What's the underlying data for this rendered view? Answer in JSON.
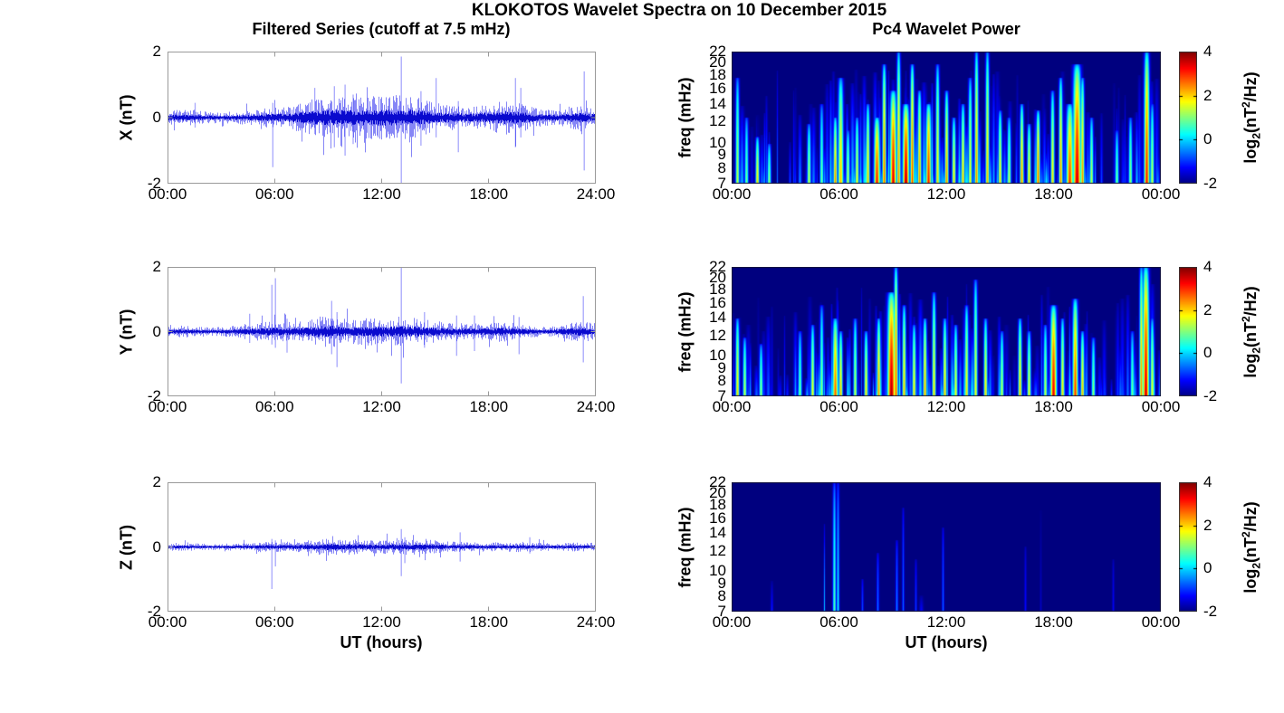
{
  "figure_title": "KLOKOTOS Wavelet Spectra on 10 December 2015",
  "colorbar": {
    "clim": [
      -2,
      4
    ],
    "ticks": [
      4,
      2,
      0,
      -2
    ],
    "label": {
      "pre": "log",
      "sub": "2",
      "mid": "(nT",
      "sup": "2",
      "post": "/Hz)"
    }
  },
  "chart_data": [
    {
      "id": "x-series",
      "type": "line",
      "title": "Filtered Series (cutoff at 7.5 mHz)",
      "ylabel": "X (nT)",
      "xlabel": "",
      "ylim": [
        -2,
        2
      ],
      "yticks": [
        2,
        0,
        -2
      ],
      "x_range_hours": [
        0,
        24
      ],
      "xticks": [
        "00:00",
        "06:00",
        "12:00",
        "18:00",
        "24:00"
      ],
      "line_color": "#0a0ace",
      "envelope_hourly_nT": [
        0.12,
        0.12,
        0.09,
        0.08,
        0.1,
        0.13,
        0.15,
        0.18,
        0.26,
        0.3,
        0.3,
        0.3,
        0.32,
        0.33,
        0.3,
        0.22,
        0.18,
        0.16,
        0.2,
        0.26,
        0.2,
        0.12,
        0.12,
        0.2,
        0.14
      ],
      "spikes": [
        {
          "t": 1.55,
          "lo": -0.3,
          "hi": 0.45
        },
        {
          "t": 5.9,
          "lo": -1.5,
          "hi": 0.45
        },
        {
          "t": 8.25,
          "lo": -0.5,
          "hi": 0.9
        },
        {
          "t": 9.35,
          "lo": -0.9,
          "hi": 0.95
        },
        {
          "t": 9.95,
          "lo": -1.15,
          "hi": 1.0
        },
        {
          "t": 10.4,
          "lo": -0.8,
          "hi": 0.7
        },
        {
          "t": 13.1,
          "lo": -2.0,
          "hi": 1.85
        },
        {
          "t": 14.2,
          "lo": -0.85,
          "hi": 0.8
        },
        {
          "t": 15.05,
          "lo": -0.6,
          "hi": 1.2
        },
        {
          "t": 16.3,
          "lo": -1.05,
          "hi": 0.5
        },
        {
          "t": 19.5,
          "lo": -0.9,
          "hi": 1.2
        },
        {
          "t": 19.8,
          "lo": -0.6,
          "hi": 0.9
        },
        {
          "t": 23.35,
          "lo": -1.6,
          "hi": 1.4
        }
      ],
      "seed": 11
    },
    {
      "id": "y-series",
      "type": "line",
      "title": "",
      "ylabel": "Y (nT)",
      "xlabel": "",
      "ylim": [
        -2,
        2
      ],
      "yticks": [
        2,
        0,
        -2
      ],
      "x_range_hours": [
        0,
        24
      ],
      "xticks": [
        "00:00",
        "06:00",
        "12:00",
        "18:00",
        "24:00"
      ],
      "line_color": "#0a0ace",
      "envelope_hourly_nT": [
        0.1,
        0.09,
        0.07,
        0.07,
        0.1,
        0.14,
        0.16,
        0.14,
        0.18,
        0.26,
        0.18,
        0.2,
        0.22,
        0.22,
        0.2,
        0.16,
        0.14,
        0.12,
        0.15,
        0.15,
        0.11,
        0.08,
        0.1,
        0.17,
        0.12
      ],
      "spikes": [
        {
          "t": 4.6,
          "lo": -0.35,
          "hi": 0.55
        },
        {
          "t": 5.85,
          "lo": -0.4,
          "hi": 1.45
        },
        {
          "t": 6.05,
          "lo": -0.5,
          "hi": 1.65
        },
        {
          "t": 6.7,
          "lo": -0.65,
          "hi": 0.4
        },
        {
          "t": 9.2,
          "lo": -0.7,
          "hi": 0.95
        },
        {
          "t": 9.5,
          "lo": -1.1,
          "hi": 0.6
        },
        {
          "t": 13.1,
          "lo": -1.6,
          "hi": 2.0
        },
        {
          "t": 14.4,
          "lo": -0.5,
          "hi": 0.6
        },
        {
          "t": 16.2,
          "lo": -0.75,
          "hi": 0.5
        },
        {
          "t": 17.2,
          "lo": -0.6,
          "hi": 0.5
        },
        {
          "t": 19.7,
          "lo": -0.7,
          "hi": 0.45
        },
        {
          "t": 23.3,
          "lo": -0.95,
          "hi": 1.1
        }
      ],
      "seed": 12
    },
    {
      "id": "z-series",
      "type": "line",
      "title": "",
      "ylabel": "Z (nT)",
      "xlabel": "UT (hours)",
      "ylim": [
        -2,
        2
      ],
      "yticks": [
        2,
        0,
        -2
      ],
      "x_range_hours": [
        0,
        24
      ],
      "xticks": [
        "00:00",
        "06:00",
        "12:00",
        "18:00",
        "24:00"
      ],
      "line_color": "#0a0ace",
      "envelope_hourly_nT": [
        0.06,
        0.06,
        0.05,
        0.05,
        0.06,
        0.07,
        0.08,
        0.08,
        0.1,
        0.13,
        0.12,
        0.1,
        0.1,
        0.12,
        0.11,
        0.1,
        0.08,
        0.07,
        0.07,
        0.07,
        0.08,
        0.06,
        0.06,
        0.07,
        0.06
      ],
      "spikes": [
        {
          "t": 5.85,
          "lo": -1.3,
          "hi": 0.25
        },
        {
          "t": 6.05,
          "lo": -0.6,
          "hi": 0.2
        },
        {
          "t": 13.1,
          "lo": -0.9,
          "hi": 0.55
        },
        {
          "t": 13.3,
          "lo": -0.5,
          "hi": 0.3
        },
        {
          "t": 16.4,
          "lo": -0.45,
          "hi": 0.45
        },
        {
          "t": 20.3,
          "lo": -0.2,
          "hi": 0.3
        }
      ],
      "seed": 13
    },
    {
      "id": "x-wavelet",
      "type": "heatmap",
      "title": "Pc4 Wavelet Power",
      "ylabel": "freq (mHz)",
      "xlabel": "",
      "yscale": "log",
      "freq_range_mhz": [
        7,
        22
      ],
      "yticks": [
        22,
        20,
        18,
        16,
        14,
        12,
        10,
        9,
        8,
        7
      ],
      "xticks": [
        "00:00",
        "06:00",
        "12:00",
        "18:00",
        "00:00"
      ],
      "clim": [
        -2,
        4
      ],
      "background_level": -2,
      "activity_hourly": [
        0.7,
        0.5,
        0.4,
        0.3,
        0.5,
        0.7,
        0.8,
        0.8,
        0.9,
        1.0,
        0.9,
        0.9,
        0.8,
        0.8,
        0.7,
        0.6,
        0.7,
        0.7,
        0.8,
        0.9,
        0.5,
        0.3,
        0.4,
        0.8,
        0.6
      ],
      "events": [
        {
          "t": 0.3,
          "v": 1.5,
          "top": 0.8
        },
        {
          "t": 0.8,
          "v": 1.0,
          "top": 0.5
        },
        {
          "t": 1.4,
          "v": 2.0,
          "top": 0.35
        },
        {
          "t": 2.1,
          "v": 1.2,
          "top": 0.3
        },
        {
          "t": 4.3,
          "v": 1.5,
          "top": 0.45
        },
        {
          "t": 5.0,
          "v": 1.0,
          "top": 0.6
        },
        {
          "t": 5.75,
          "v": 2.5,
          "top": 0.5
        },
        {
          "t": 6.1,
          "v": 2.2,
          "top": 0.8,
          "sigma": 2.0
        },
        {
          "t": 6.5,
          "v": 1.5,
          "top": 0.4
        },
        {
          "t": 7.0,
          "v": 1.8,
          "top": 0.5
        },
        {
          "t": 7.6,
          "v": 2.2,
          "top": 0.6
        },
        {
          "t": 8.1,
          "v": 3.2,
          "top": 0.5,
          "sigma": 2.2
        },
        {
          "t": 8.5,
          "v": 2.8,
          "top": 0.9
        },
        {
          "t": 9.0,
          "v": 3.5,
          "top": 0.7,
          "sigma": 2.4
        },
        {
          "t": 9.3,
          "v": 2.5,
          "top": 1.0
        },
        {
          "t": 9.7,
          "v": 3.8,
          "top": 0.6,
          "sigma": 2.4
        },
        {
          "t": 10.1,
          "v": 3.0,
          "top": 0.9
        },
        {
          "t": 10.5,
          "v": 2.5,
          "top": 0.7
        },
        {
          "t": 11.0,
          "v": 3.2,
          "top": 0.6,
          "sigma": 2.0
        },
        {
          "t": 11.5,
          "v": 2.0,
          "top": 0.9
        },
        {
          "t": 12.0,
          "v": 2.5,
          "top": 0.7
        },
        {
          "t": 12.4,
          "v": 2.0,
          "top": 0.5
        },
        {
          "t": 12.9,
          "v": 2.2,
          "top": 0.6
        },
        {
          "t": 13.3,
          "v": 1.8,
          "top": 0.8
        },
        {
          "t": 13.65,
          "v": 2.5,
          "top": 1.0
        },
        {
          "t": 14.3,
          "v": 2.2,
          "top": 1.0
        },
        {
          "t": 15.0,
          "v": 2.0,
          "top": 0.55
        },
        {
          "t": 15.5,
          "v": 1.5,
          "top": 0.5
        },
        {
          "t": 16.2,
          "v": 2.5,
          "top": 0.6
        },
        {
          "t": 16.6,
          "v": 2.0,
          "top": 0.45
        },
        {
          "t": 17.1,
          "v": 2.8,
          "top": 0.55
        },
        {
          "t": 17.9,
          "v": 2.0,
          "top": 0.7
        },
        {
          "t": 18.4,
          "v": 2.5,
          "top": 0.8
        },
        {
          "t": 18.9,
          "v": 3.0,
          "top": 0.6,
          "sigma": 2.6
        },
        {
          "t": 19.3,
          "v": 3.6,
          "top": 0.9,
          "sigma": 3.0
        },
        {
          "t": 19.6,
          "v": 2.5,
          "top": 0.8
        },
        {
          "t": 20.1,
          "v": 1.5,
          "top": 0.5
        },
        {
          "t": 21.5,
          "v": 1.0,
          "top": 0.4
        },
        {
          "t": 22.3,
          "v": 1.2,
          "top": 0.5
        },
        {
          "t": 23.2,
          "v": 3.2,
          "top": 1.0,
          "sigma": 2.0
        },
        {
          "t": 23.5,
          "v": 1.5,
          "top": 0.6
        }
      ],
      "streak_count": 380,
      "seed": 21
    },
    {
      "id": "y-wavelet",
      "type": "heatmap",
      "title": "",
      "ylabel": "freq (mHz)",
      "xlabel": "",
      "yscale": "log",
      "freq_range_mhz": [
        7,
        22
      ],
      "yticks": [
        22,
        20,
        18,
        16,
        14,
        12,
        10,
        9,
        8,
        7
      ],
      "xticks": [
        "00:00",
        "06:00",
        "12:00",
        "18:00",
        "00:00"
      ],
      "clim": [
        -2,
        4
      ],
      "background_level": -2,
      "activity_hourly": [
        0.7,
        0.5,
        0.3,
        0.4,
        0.6,
        0.7,
        0.8,
        0.7,
        0.8,
        1.0,
        0.8,
        0.7,
        0.7,
        0.6,
        0.6,
        0.5,
        0.7,
        0.6,
        0.8,
        0.7,
        0.4,
        0.3,
        0.5,
        1.0,
        0.6
      ],
      "events": [
        {
          "t": 0.3,
          "v": 2.0,
          "top": 0.6
        },
        {
          "t": 0.7,
          "v": 1.5,
          "top": 0.45
        },
        {
          "t": 1.6,
          "v": 1.2,
          "top": 0.4
        },
        {
          "t": 3.8,
          "v": 1.0,
          "top": 0.5
        },
        {
          "t": 4.5,
          "v": 1.8,
          "top": 0.55
        },
        {
          "t": 5.0,
          "v": 1.2,
          "top": 0.7
        },
        {
          "t": 5.75,
          "v": 2.8,
          "top": 0.6,
          "sigma": 2.0
        },
        {
          "t": 6.1,
          "v": 2.2,
          "top": 0.5
        },
        {
          "t": 6.9,
          "v": 1.5,
          "top": 0.6
        },
        {
          "t": 7.5,
          "v": 2.0,
          "top": 0.5
        },
        {
          "t": 8.2,
          "v": 2.5,
          "top": 0.6
        },
        {
          "t": 8.9,
          "v": 3.8,
          "top": 0.8,
          "sigma": 3.0
        },
        {
          "t": 9.15,
          "v": 3.0,
          "top": 1.0
        },
        {
          "t": 9.6,
          "v": 2.2,
          "top": 0.7
        },
        {
          "t": 10.2,
          "v": 2.0,
          "top": 0.55
        },
        {
          "t": 10.8,
          "v": 2.4,
          "top": 0.6
        },
        {
          "t": 11.3,
          "v": 2.0,
          "top": 0.8
        },
        {
          "t": 11.9,
          "v": 2.2,
          "top": 0.6
        },
        {
          "t": 12.5,
          "v": 1.8,
          "top": 0.55
        },
        {
          "t": 13.1,
          "v": 2.0,
          "top": 0.7
        },
        {
          "t": 13.6,
          "v": 1.8,
          "top": 0.9
        },
        {
          "t": 14.2,
          "v": 2.0,
          "top": 0.6
        },
        {
          "t": 15.1,
          "v": 1.5,
          "top": 0.5
        },
        {
          "t": 16.1,
          "v": 2.2,
          "top": 0.6
        },
        {
          "t": 16.6,
          "v": 1.8,
          "top": 0.5
        },
        {
          "t": 17.5,
          "v": 1.5,
          "top": 0.55
        },
        {
          "t": 17.95,
          "v": 3.4,
          "top": 0.7,
          "sigma": 2.4
        },
        {
          "t": 18.5,
          "v": 2.0,
          "top": 0.6
        },
        {
          "t": 19.2,
          "v": 3.0,
          "top": 0.75,
          "sigma": 2.0
        },
        {
          "t": 19.6,
          "v": 2.2,
          "top": 0.5
        },
        {
          "t": 20.2,
          "v": 1.2,
          "top": 0.45
        },
        {
          "t": 22.4,
          "v": 1.0,
          "top": 0.5
        },
        {
          "t": 22.9,
          "v": 2.5,
          "top": 1.0
        },
        {
          "t": 23.15,
          "v": 3.6,
          "top": 1.0,
          "sigma": 2.4
        },
        {
          "t": 23.5,
          "v": 1.8,
          "top": 0.6
        }
      ],
      "streak_count": 330,
      "seed": 22
    },
    {
      "id": "z-wavelet",
      "type": "heatmap",
      "title": "",
      "ylabel": "freq (mHz)",
      "xlabel": "UT (hours)",
      "yscale": "log",
      "freq_range_mhz": [
        7,
        22
      ],
      "yticks": [
        22,
        20,
        18,
        16,
        14,
        12,
        10,
        9,
        8,
        7
      ],
      "xticks": [
        "00:00",
        "06:00",
        "12:00",
        "18:00",
        "00:00"
      ],
      "clim": [
        -2,
        4
      ],
      "background_level": -2,
      "activity_hourly": [
        0.15,
        0.1,
        0.1,
        0.1,
        0.15,
        0.6,
        0.3,
        0.3,
        0.4,
        0.5,
        0.35,
        0.4,
        0.25,
        0.2,
        0.15,
        0.15,
        0.2,
        0.1,
        0.1,
        0.1,
        0.15,
        0.15,
        0.1,
        0.1,
        0.1
      ],
      "events": [
        {
          "t": 5.72,
          "v": 0.8,
          "top": 1.0,
          "sigma": 1.2
        },
        {
          "t": 5.92,
          "v": 0.3,
          "top": 1.0,
          "sigma": 1.0
        },
        {
          "t": 7.3,
          "v": -0.8,
          "top": 0.25,
          "sigma": 0.8
        },
        {
          "t": 8.15,
          "v": -0.5,
          "top": 0.45,
          "sigma": 0.9
        },
        {
          "t": 9.2,
          "v": -0.4,
          "top": 0.55,
          "sigma": 0.9
        },
        {
          "t": 9.55,
          "v": -0.6,
          "top": 0.8,
          "sigma": 0.8
        },
        {
          "t": 10.3,
          "v": -0.9,
          "top": 0.4,
          "sigma": 0.8
        },
        {
          "t": 11.8,
          "v": -0.6,
          "top": 0.65,
          "sigma": 0.8
        },
        {
          "t": 16.4,
          "v": -1.2,
          "top": 0.5,
          "sigma": 0.8
        },
        {
          "t": 21.3,
          "v": -1.3,
          "top": 0.4,
          "sigma": 0.8
        }
      ],
      "streak_count": 25,
      "seed": 23
    }
  ]
}
